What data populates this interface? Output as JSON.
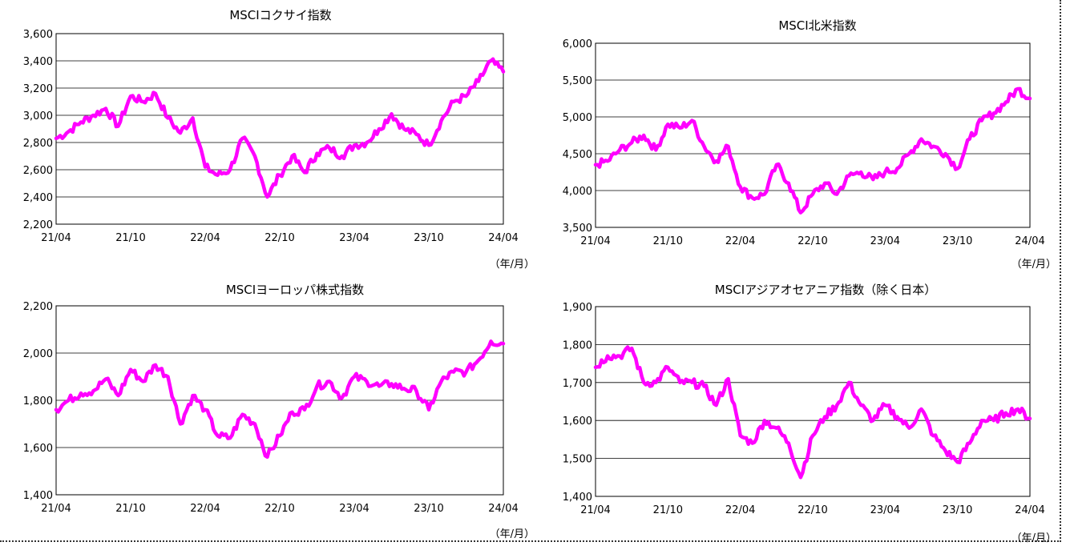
{
  "chart_data": [
    {
      "type": "line",
      "title": "MSCIコクサイ指数",
      "unit_label": "（年/月）",
      "xlabel": "",
      "ylabel": "",
      "ylim": [
        2200,
        3600
      ],
      "yticks": [
        "3,600",
        "3,400",
        "3,200",
        "3,000",
        "2,800",
        "2,600",
        "2,400",
        "2,200"
      ],
      "xticks": [
        "21/04",
        "21/10",
        "22/04",
        "22/10",
        "23/04",
        "23/10",
        "24/04"
      ],
      "grid": true,
      "series": [
        {
          "color": "#ff00ff",
          "x": [
            "21/04",
            "21/05",
            "21/06",
            "21/07",
            "21/08",
            "21/09",
            "21/10",
            "21/11",
            "21/12",
            "22/01",
            "22/02",
            "22/03",
            "22/04",
            "22/05",
            "22/06",
            "22/07",
            "22/08",
            "22/09",
            "22/10",
            "22/11",
            "22/12",
            "23/01",
            "23/02",
            "23/03",
            "23/04",
            "23/05",
            "23/06",
            "23/07",
            "23/08",
            "23/09",
            "23/10",
            "23/11",
            "23/12",
            "24/01",
            "24/02",
            "24/03",
            "24/04"
          ],
          "values": [
            2830,
            2880,
            2950,
            3000,
            3050,
            2920,
            3140,
            3100,
            3160,
            2980,
            2870,
            2980,
            2620,
            2560,
            2600,
            2830,
            2700,
            2400,
            2560,
            2700,
            2580,
            2720,
            2760,
            2700,
            2780,
            2800,
            2900,
            3010,
            2900,
            2860,
            2780,
            2960,
            3100,
            3140,
            3250,
            3400,
            3320
          ]
        }
      ]
    },
    {
      "type": "line",
      "title": "MSCI北米指数",
      "unit_label": "（年/月）",
      "xlabel": "",
      "ylabel": "",
      "ylim": [
        3500,
        6000
      ],
      "yticks": [
        "6,000",
        "5,500",
        "5,000",
        "4,500",
        "4,000",
        "3,500"
      ],
      "xticks": [
        "21/04",
        "21/10",
        "22/04",
        "22/10",
        "23/04",
        "23/10",
        "24/04"
      ],
      "grid": true,
      "series": [
        {
          "color": "#ff00ff",
          "x": [
            "21/04",
            "21/05",
            "21/06",
            "21/07",
            "21/08",
            "21/09",
            "21/10",
            "21/11",
            "21/12",
            "22/01",
            "22/02",
            "22/03",
            "22/04",
            "22/05",
            "22/06",
            "22/07",
            "22/08",
            "22/09",
            "22/10",
            "22/11",
            "22/12",
            "23/01",
            "23/02",
            "23/03",
            "23/04",
            "23/05",
            "23/06",
            "23/07",
            "23/08",
            "23/09",
            "23/10",
            "23/11",
            "23/12",
            "24/01",
            "24/02",
            "24/03",
            "24/04"
          ],
          "values": [
            4350,
            4400,
            4550,
            4650,
            4750,
            4550,
            4900,
            4850,
            4950,
            4600,
            4400,
            4600,
            4050,
            3900,
            3950,
            4350,
            4100,
            3700,
            3950,
            4100,
            3950,
            4200,
            4250,
            4150,
            4250,
            4300,
            4500,
            4700,
            4600,
            4500,
            4300,
            4700,
            4950,
            5050,
            5200,
            5380,
            5250
          ]
        }
      ]
    },
    {
      "type": "line",
      "title": "MSCIヨーロッパ株式指数",
      "unit_label": "（年/月）",
      "xlabel": "",
      "ylabel": "",
      "ylim": [
        1400,
        2200
      ],
      "yticks": [
        "2,200",
        "2,000",
        "1,800",
        "1,600",
        "1,400"
      ],
      "xticks": [
        "21/04",
        "21/10",
        "22/04",
        "22/10",
        "23/04",
        "23/10",
        "24/04"
      ],
      "grid": true,
      "series": [
        {
          "color": "#ff00ff",
          "x": [
            "21/04",
            "21/05",
            "21/06",
            "21/07",
            "21/08",
            "21/09",
            "21/10",
            "21/11",
            "21/12",
            "22/01",
            "22/02",
            "22/03",
            "22/04",
            "22/05",
            "22/06",
            "22/07",
            "22/08",
            "22/09",
            "22/10",
            "22/11",
            "22/12",
            "23/01",
            "23/02",
            "23/03",
            "23/04",
            "23/05",
            "23/06",
            "23/07",
            "23/08",
            "23/09",
            "23/10",
            "23/11",
            "23/12",
            "24/01",
            "24/02",
            "24/03",
            "24/04"
          ],
          "values": [
            1760,
            1800,
            1830,
            1840,
            1890,
            1820,
            1930,
            1880,
            1950,
            1900,
            1700,
            1820,
            1760,
            1650,
            1640,
            1740,
            1700,
            1560,
            1650,
            1750,
            1760,
            1860,
            1880,
            1810,
            1900,
            1880,
            1860,
            1870,
            1850,
            1840,
            1760,
            1880,
            1920,
            1920,
            1970,
            2050,
            2040
          ]
        }
      ]
    },
    {
      "type": "line",
      "title": "MSCIアジアオセアニア指数（除く日本）",
      "unit_label": "（年/月）",
      "xlabel": "",
      "ylabel": "",
      "ylim": [
        1400,
        1900
      ],
      "yticks": [
        "1,900",
        "1,800",
        "1,700",
        "1,600",
        "1,500",
        "1,400"
      ],
      "xticks": [
        "21/04",
        "21/10",
        "22/04",
        "22/10",
        "23/04",
        "23/10",
        "24/04"
      ],
      "grid": true,
      "series": [
        {
          "color": "#ff00ff",
          "x": [
            "21/04",
            "21/05",
            "21/06",
            "21/07",
            "21/08",
            "21/09",
            "21/10",
            "21/11",
            "21/12",
            "22/01",
            "22/02",
            "22/03",
            "22/04",
            "22/05",
            "22/06",
            "22/07",
            "22/08",
            "22/09",
            "22/10",
            "22/11",
            "22/12",
            "23/01",
            "23/02",
            "23/03",
            "23/04",
            "23/05",
            "23/06",
            "23/07",
            "23/08",
            "23/09",
            "23/10",
            "23/11",
            "23/12",
            "24/01",
            "24/02",
            "24/03",
            "24/04"
          ],
          "values": [
            1740,
            1770,
            1770,
            1790,
            1700,
            1700,
            1740,
            1700,
            1700,
            1690,
            1640,
            1710,
            1560,
            1540,
            1600,
            1580,
            1540,
            1450,
            1560,
            1610,
            1640,
            1700,
            1640,
            1600,
            1640,
            1610,
            1580,
            1630,
            1560,
            1520,
            1490,
            1540,
            1600,
            1600,
            1620,
            1630,
            1605
          ]
        }
      ]
    }
  ]
}
